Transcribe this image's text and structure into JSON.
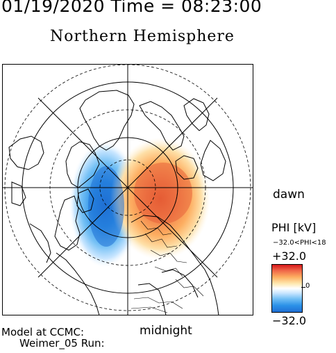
{
  "header": {
    "timestamp": "01/19/2020 Time = 08:23:00",
    "hemisphere_title": "Northern Hemisphere"
  },
  "map": {
    "projection": "polar-stereographic",
    "pole": "north-geomagnetic",
    "latitude_circles": [
      "dashed",
      "solid",
      "dashed",
      "solid",
      "dashed"
    ],
    "meridian_lines": 4,
    "features": [
      "coastlines",
      "state-borders",
      "potential-pattern"
    ],
    "pattern": {
      "negative_cell": "dusk-side",
      "positive_cell": "dawn-side"
    }
  },
  "labels": {
    "dawn": "dawn",
    "midnight": "midnight"
  },
  "colorbar": {
    "title": "PHI [kV]",
    "range_text": "−32.0<PHI<18",
    "max_label": "+32.0",
    "min_label": "−32.0",
    "zero_label": "0",
    "colors": [
      "#d7191c",
      "#fdae61",
      "#ffffff",
      "#74c0f5",
      "#1f6fd4"
    ]
  },
  "footer": {
    "model_line1": "Model at CCMC:",
    "model_line2": "Weimer_05 Run:"
  }
}
